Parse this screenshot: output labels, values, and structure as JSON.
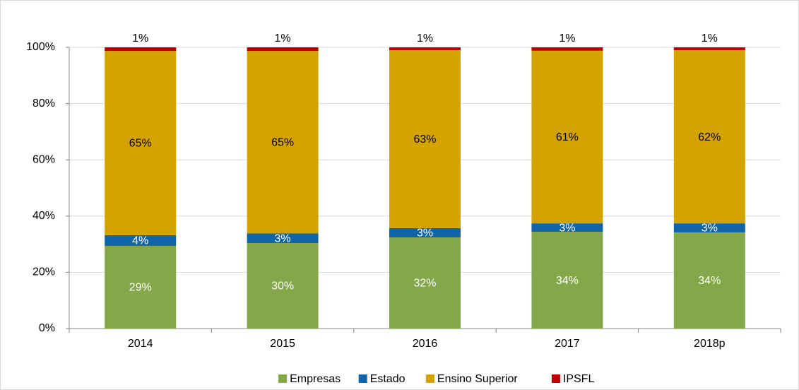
{
  "chart_data": {
    "type": "stacked_bar",
    "categories": [
      "2014",
      "2015",
      "2016",
      "2017",
      "2018p"
    ],
    "series": [
      {
        "name": "Empresas",
        "color": "#84a74a",
        "values": [
          29.4,
          30.4,
          32.4,
          34.4,
          34.2
        ],
        "value_labels": [
          "29%",
          "30%",
          "32%",
          "34%",
          "34%"
        ]
      },
      {
        "name": "Estado",
        "color": "#1064a8",
        "values": [
          3.8,
          3.4,
          3.3,
          3.0,
          3.2
        ],
        "value_labels": [
          "4%",
          "3%",
          "3%",
          "3%",
          "3%"
        ]
      },
      {
        "name": "Ensino Superior",
        "color": "#d4a300",
        "values": [
          65.5,
          64.9,
          63.3,
          61.4,
          61.6
        ],
        "value_labels": [
          "65%",
          "65%",
          "63%",
          "61%",
          "62%"
        ]
      },
      {
        "name": "IPSFL",
        "color": "#c00000",
        "values": [
          1.3,
          1.3,
          1.0,
          1.2,
          1.0
        ],
        "value_labels": [
          "1%",
          "1%",
          "1%",
          "1%",
          "1%"
        ]
      }
    ],
    "ylim": [
      0,
      100
    ],
    "yticks": [
      {
        "value": 0,
        "label": "0%"
      },
      {
        "value": 20,
        "label": "20%"
      },
      {
        "value": 40,
        "label": "40%"
      },
      {
        "value": 60,
        "label": "60%"
      },
      {
        "value": 80,
        "label": "80%"
      },
      {
        "value": 100,
        "label": "100%"
      }
    ],
    "grid": true,
    "legend": "bottom"
  }
}
